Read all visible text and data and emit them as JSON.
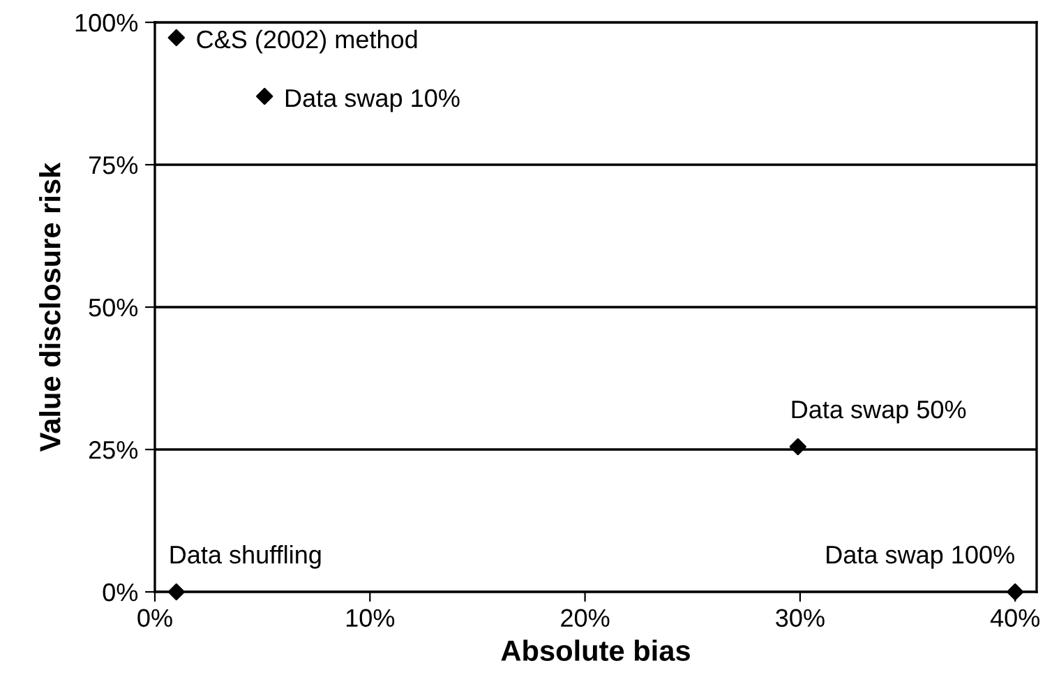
{
  "chart_data": {
    "type": "scatter",
    "xlabel": "Absolute bias",
    "ylabel": "Value disclosure risk",
    "series": [
      {
        "color": "#000000",
        "x": [
          1.0,
          5.1,
          29.9,
          1.0,
          40.0
        ],
        "values": [
          97.3,
          87.0,
          25.5,
          0,
          0
        ]
      }
    ],
    "annotations": [
      {
        "text": "C&S (2002) method",
        "x": 1.0,
        "y": 97.3
      },
      {
        "text": "Data swap 10%",
        "x": 5.1,
        "y": 87.0
      },
      {
        "text": "Data swap 50%",
        "x": 29.9,
        "y": 25.5
      },
      {
        "text": "Data shuffling",
        "x": 1.0,
        "y": 0
      },
      {
        "text": "Data swap 100%",
        "x": 40.0,
        "y": 0
      }
    ],
    "marker": "diamond",
    "grid": "y",
    "legend": false,
    "xlim": [
      0,
      41
    ],
    "ylim": [
      0,
      100
    ],
    "xticks": [
      {
        "value": 0,
        "label": "0%"
      },
      {
        "value": 10,
        "label": "10%"
      },
      {
        "value": 20,
        "label": "20%"
      },
      {
        "value": 30,
        "label": "30%"
      },
      {
        "value": 40,
        "label": "40%"
      }
    ],
    "yticks": [
      {
        "value": 0,
        "label": "0%"
      },
      {
        "value": 25,
        "label": "25%"
      },
      {
        "value": 50,
        "label": "50%"
      },
      {
        "value": 75,
        "label": "75%"
      },
      {
        "value": 100,
        "label": "100%"
      }
    ]
  }
}
